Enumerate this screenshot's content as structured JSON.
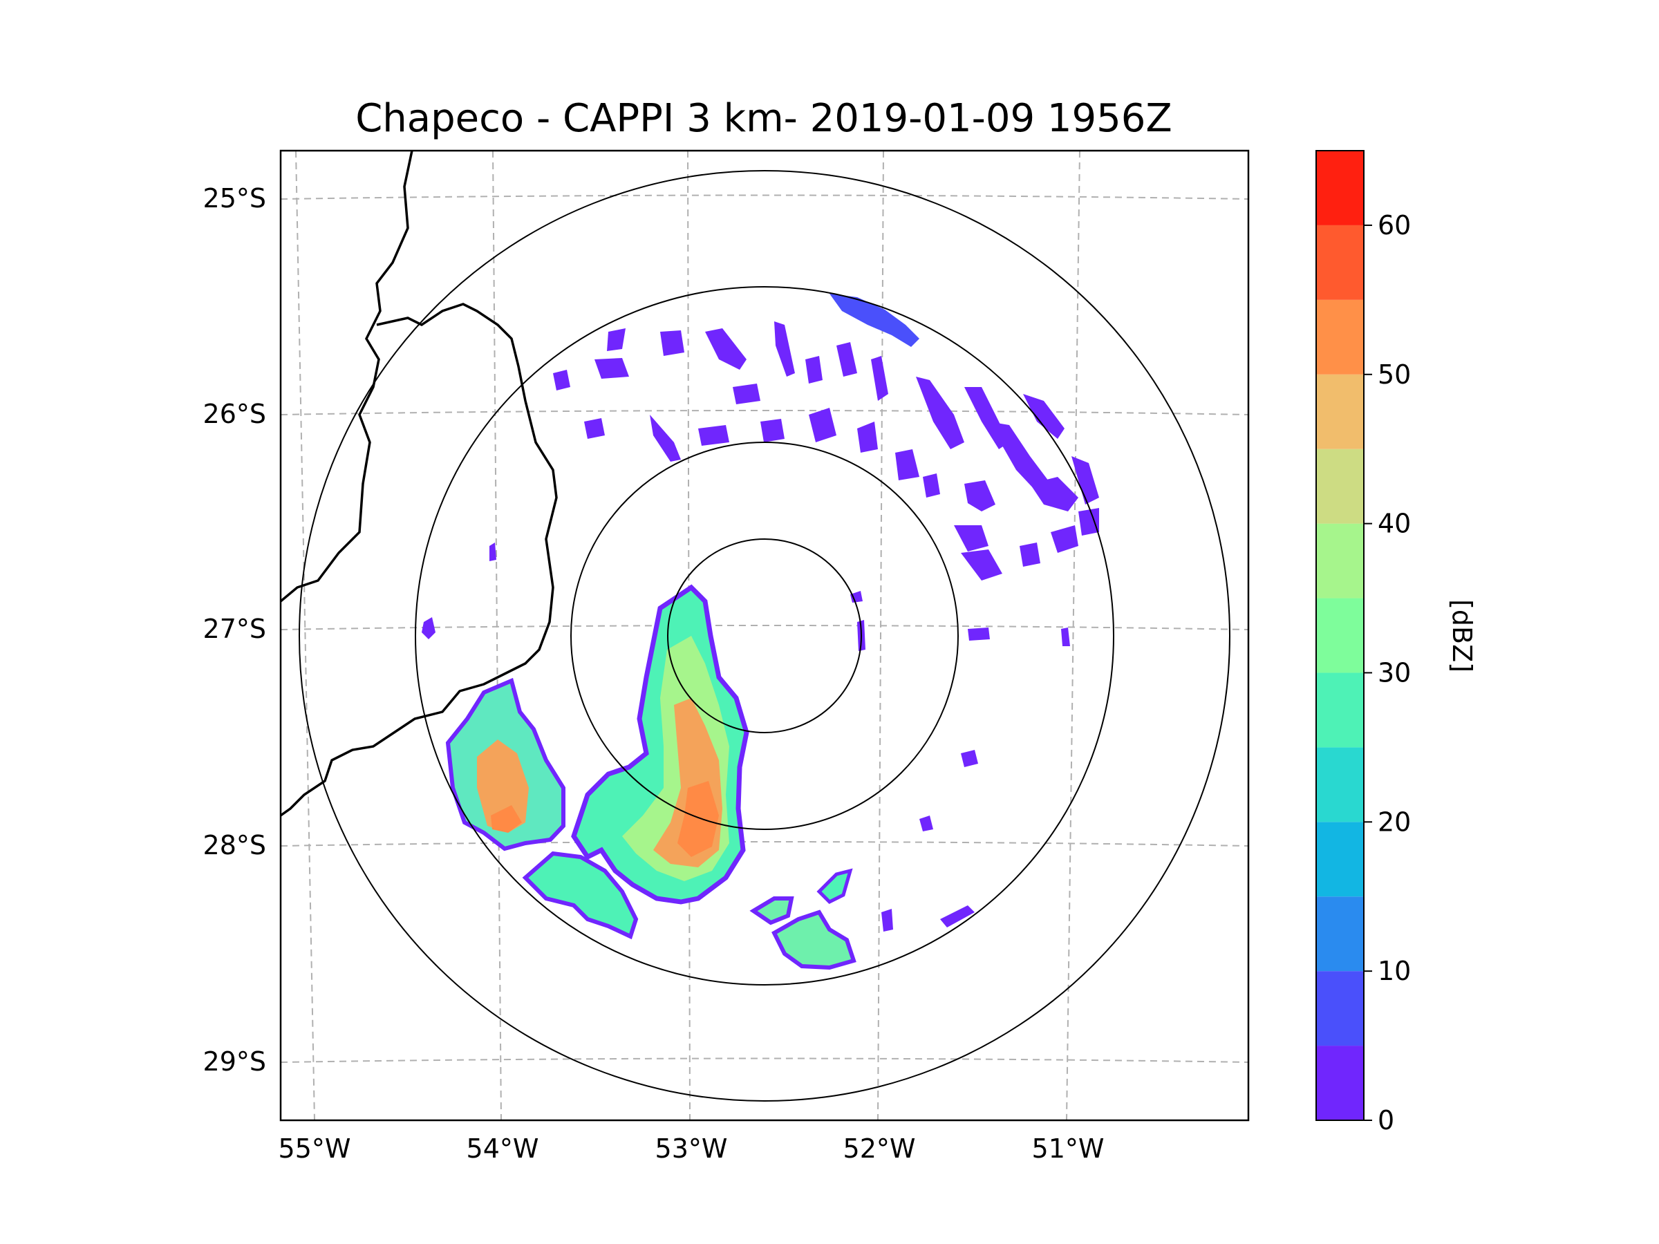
{
  "title": "Chapeco - CAPPI 3 km- 2019-01-09 1956Z",
  "map": {
    "lat_labels": [
      "25°S",
      "26°S",
      "27°S",
      "28°S",
      "29°S"
    ],
    "lon_labels": [
      "55°W",
      "54°W",
      "53°W",
      "52°W",
      "51°W"
    ],
    "gridline_style": "dashed gray",
    "range_rings": 4,
    "radar_site": "Chapeco"
  },
  "colorbar": {
    "label": "[dBZ]",
    "ticks": [
      "0",
      "10",
      "20",
      "30",
      "40",
      "50",
      "60"
    ],
    "range": [
      0,
      65
    ],
    "levels": [
      0,
      5,
      10,
      15,
      20,
      25,
      30,
      35,
      40,
      45,
      50,
      55,
      60,
      65
    ],
    "colors": [
      "#7026fd",
      "#4a50fb",
      "#2a8bef",
      "#12b6e3",
      "#29d8d0",
      "#4ef2b6",
      "#7efd9b",
      "#a6f58c",
      "#cddc83",
      "#f1bd6c",
      "#ff9048",
      "#ff5a2e",
      "#ff2010"
    ]
  },
  "colors": {
    "boundary": "#000000",
    "grid": "#b0b0b0",
    "rings": "#000000"
  }
}
